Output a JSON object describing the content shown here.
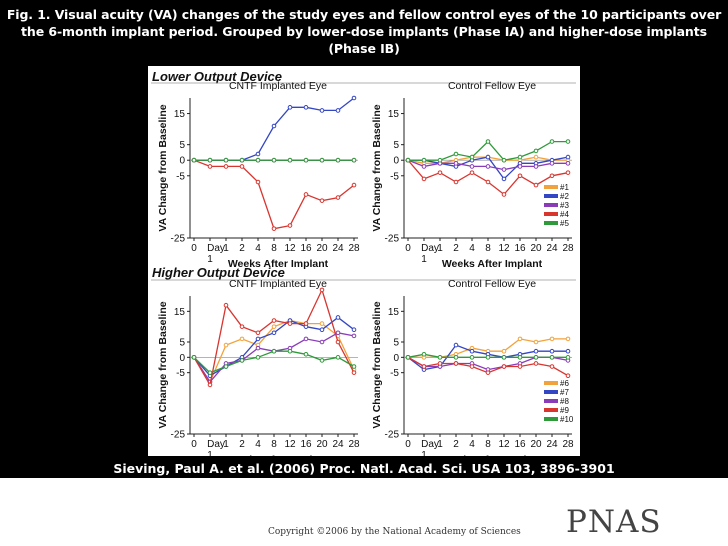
{
  "caption": {
    "line1": "Fig. 1. Visual acuity (VA) changes of the study eyes and fellow control eyes of the 10 participants over",
    "line2": "the 6-month implant period.  Grouped by lower-dose implants (Phase IA) and higher-dose implants",
    "line3": "(Phase IB)"
  },
  "citation": "Sieving, Paul A. et al. (2006) Proc. Natl. Acad. Sci. USA 103, 3896-3901",
  "footer": {
    "copyright": "Copyright ©2006 by the National Academy of Sciences",
    "logo_text": "PNAS"
  },
  "colors": {
    "orange": "#f2a23c",
    "blue": "#3346c4",
    "red": "#d9352f",
    "purple": "#8a3cb8",
    "green": "#2e9a3a",
    "maroon": "#8b2a3c"
  },
  "chart_data": [
    {
      "type": "line",
      "group": "Lower Output Device",
      "title": "CNTF Implanted Eye",
      "xlabel": "Weeks After Implant",
      "ylabel": "VA Change from Baseline",
      "x_ticks": [
        "0",
        "Day 1",
        "1",
        "2",
        "4",
        "8",
        "12",
        "16",
        "20",
        "24",
        "28"
      ],
      "y_ticks": [
        15,
        5,
        0,
        -5,
        -25
      ],
      "ylim": [
        -25,
        20
      ],
      "series": [
        {
          "name": "#1",
          "color": "orange",
          "values": [
            0,
            0,
            0,
            0,
            0,
            0,
            0,
            0,
            0,
            0,
            0
          ]
        },
        {
          "name": "#2",
          "color": "blue",
          "values": [
            0,
            0,
            0,
            0,
            2,
            11,
            17,
            17,
            16,
            16,
            20
          ]
        },
        {
          "name": "#3",
          "color": "purple",
          "values": [
            0,
            0,
            0,
            0,
            0,
            0,
            0,
            0,
            0,
            0,
            0
          ]
        },
        {
          "name": "#4",
          "color": "red",
          "values": [
            0,
            -2,
            -2,
            -2,
            -7,
            -22,
            -21,
            -11,
            -13,
            -12,
            -8
          ]
        },
        {
          "name": "#5",
          "color": "green",
          "values": [
            0,
            0,
            0,
            0,
            0,
            0,
            0,
            0,
            0,
            0,
            0
          ]
        }
      ]
    },
    {
      "type": "line",
      "group": "Lower Output Device",
      "title": "Control Fellow Eye",
      "xlabel": "Weeks After Implant",
      "ylabel": "VA Change from Baseline",
      "x_ticks": [
        "0",
        "Day 1",
        "1",
        "2",
        "4",
        "8",
        "12",
        "16",
        "20",
        "24",
        "28"
      ],
      "y_ticks": [
        15,
        5,
        0,
        -5,
        -25
      ],
      "ylim": [
        -25,
        20
      ],
      "legend": [
        "#1",
        "#2",
        "#3",
        "#4",
        "#5"
      ],
      "series": [
        {
          "name": "#1",
          "color": "orange",
          "values": [
            0,
            -1,
            -1,
            0,
            1,
            1,
            0,
            0,
            1,
            0,
            0
          ]
        },
        {
          "name": "#2",
          "color": "blue",
          "values": [
            0,
            0,
            -1,
            -2,
            0,
            1,
            -6,
            -1,
            -1,
            0,
            1
          ]
        },
        {
          "name": "#3",
          "color": "purple",
          "values": [
            0,
            -2,
            -1,
            -1,
            -2,
            -2,
            -3,
            -2,
            -2,
            -1,
            -1
          ]
        },
        {
          "name": "#4",
          "color": "red",
          "values": [
            0,
            -6,
            -4,
            -7,
            -4,
            -7,
            -11,
            -5,
            -8,
            -5,
            -4
          ]
        },
        {
          "name": "#5",
          "color": "green",
          "values": [
            0,
            0,
            0,
            2,
            1,
            6,
            0,
            1,
            3,
            6,
            6
          ]
        }
      ]
    },
    {
      "type": "line",
      "group": "Higher Output Device",
      "title": "CNTF Implanted Eye",
      "xlabel": "Weeks After Implant",
      "ylabel": "VA Change from Baseline",
      "x_ticks": [
        "0",
        "Day 1",
        "1",
        "2",
        "4",
        "8",
        "12",
        "16",
        "20",
        "24",
        "28"
      ],
      "y_ticks": [
        15,
        5,
        0,
        -5,
        -25
      ],
      "ylim": [
        -25,
        20
      ],
      "series": [
        {
          "name": "#6",
          "color": "orange",
          "values": [
            0,
            -8,
            4,
            6,
            4,
            10,
            12,
            11,
            11,
            7,
            -4
          ]
        },
        {
          "name": "#7",
          "color": "blue",
          "values": [
            0,
            -6,
            -3,
            0,
            6,
            8,
            12,
            10,
            9,
            13,
            9
          ]
        },
        {
          "name": "#8",
          "color": "purple",
          "values": [
            0,
            -8,
            -2,
            -1,
            3,
            2,
            3,
            6,
            5,
            8,
            7
          ]
        },
        {
          "name": "#9",
          "color": "red",
          "values": [
            0,
            -9,
            17,
            10,
            8,
            12,
            11,
            11,
            22,
            5,
            -5
          ]
        },
        {
          "name": "#10",
          "color": "green",
          "values": [
            0,
            -5,
            -3,
            -1,
            0,
            2,
            2,
            1,
            -1,
            0,
            -3
          ]
        }
      ]
    },
    {
      "type": "line",
      "group": "Higher Output Device",
      "title": "Control Fellow Eye",
      "xlabel": "Weeks After Implant",
      "ylabel": "VA Change from Baseline",
      "x_ticks": [
        "0",
        "Day 1",
        "1",
        "2",
        "4",
        "8",
        "12",
        "16",
        "20",
        "24",
        "28"
      ],
      "y_ticks": [
        15,
        5,
        0,
        -5,
        -25
      ],
      "ylim": [
        -25,
        20
      ],
      "legend": [
        "#6",
        "#7",
        "#8",
        "#9",
        "#10"
      ],
      "series": [
        {
          "name": "#6",
          "color": "orange",
          "values": [
            0,
            0,
            0,
            1,
            3,
            2,
            2,
            6,
            5,
            6,
            6
          ]
        },
        {
          "name": "#7",
          "color": "blue",
          "values": [
            0,
            -4,
            -3,
            4,
            2,
            1,
            0,
            1,
            2,
            2,
            2
          ]
        },
        {
          "name": "#8",
          "color": "purple",
          "values": [
            0,
            -3,
            -3,
            -2,
            -2,
            -4,
            -3,
            -2,
            0,
            0,
            -1
          ]
        },
        {
          "name": "#9",
          "color": "red",
          "values": [
            0,
            -3,
            -2,
            -2,
            -3,
            -5,
            -3,
            -3,
            -2,
            -3,
            -6
          ]
        },
        {
          "name": "#10",
          "color": "green",
          "values": [
            0,
            1,
            0,
            0,
            0,
            0,
            0,
            0,
            0,
            0,
            0
          ]
        }
      ]
    }
  ],
  "section_labels": {
    "lower": "Lower Output Device",
    "higher": "Higher Output Device"
  }
}
